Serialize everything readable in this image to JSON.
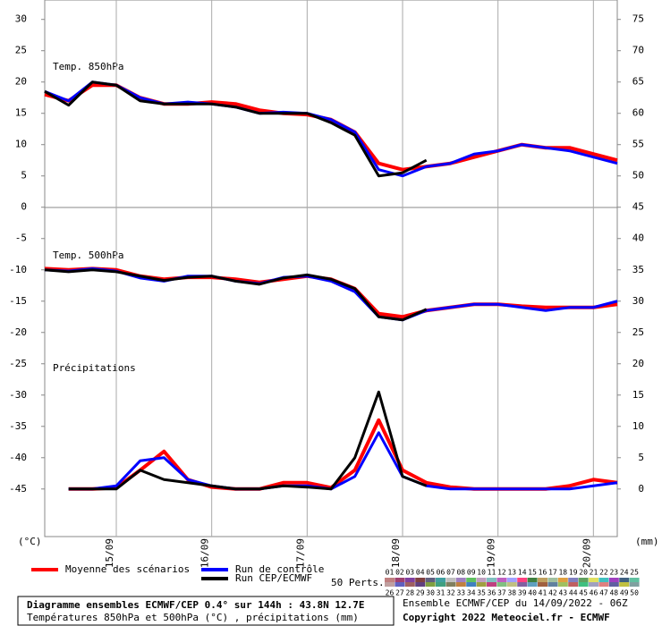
{
  "chart_data": {
    "type": "line",
    "panels": [
      "Temp. 850hPa",
      "Temp. 500hPa",
      "Précipitations"
    ],
    "y_unit": "(°C)",
    "y2_unit": "(mm)",
    "x": [
      0,
      6,
      12,
      18,
      24,
      30,
      36,
      42,
      48,
      54,
      60,
      66,
      72,
      78,
      84,
      90,
      96,
      102,
      108,
      114,
      120,
      126,
      132,
      138,
      144
    ],
    "xlim": [
      0,
      144
    ],
    "xticks": [
      {
        "value": 18,
        "label": "15/09"
      },
      {
        "value": 42,
        "label": "16/09"
      },
      {
        "value": 66,
        "label": "17/09"
      },
      {
        "value": 90,
        "label": "18/09"
      },
      {
        "value": 114,
        "label": "19/09"
      },
      {
        "value": 138,
        "label": "20/09"
      }
    ],
    "ylim": [
      -52.6,
      33.1
    ],
    "yticks": [
      30,
      25,
      20,
      15,
      10,
      5,
      0,
      -5,
      -10,
      -15,
      -20,
      -25,
      -30,
      -35,
      -40,
      -45
    ],
    "y2lim": [
      -7.6,
      78.1
    ],
    "y2ticks": [
      75,
      70,
      65,
      60,
      55,
      50,
      45,
      40,
      35,
      30,
      25,
      20,
      15,
      10,
      5,
      0
    ],
    "grid": true,
    "series": [
      {
        "name": "Moyenne des scénarios",
        "color": "#ff0000",
        "width": 4,
        "t850": [
          18,
          17,
          19.5,
          19.5,
          17.5,
          16.5,
          16.5,
          16.8,
          16.5,
          15.5,
          15,
          14.8,
          14,
          12,
          7,
          6,
          6.5,
          7,
          8,
          9,
          10,
          9.5,
          9.5,
          8.5,
          7.5
        ],
        "t500": [
          -9.8,
          -10,
          -9.8,
          -10,
          -11,
          -11.5,
          -11.2,
          -11.2,
          -11.5,
          -12,
          -11.5,
          -11,
          -11.5,
          -13,
          -17,
          -17.5,
          -16.5,
          -16,
          -15.5,
          -15.5,
          -15.8,
          -16,
          -16,
          -16,
          -15.5
        ],
        "precip": [
          null,
          0,
          0,
          0.2,
          3,
          6,
          1.5,
          0.3,
          0,
          0,
          1,
          1,
          0.2,
          3,
          11,
          3,
          1,
          0.3,
          0,
          0,
          0,
          0,
          0.5,
          1.5,
          1
        ]
      },
      {
        "name": "Run de contrôle",
        "color": "#0000ff",
        "width": 3,
        "t850": [
          18.5,
          17,
          20,
          19.5,
          17.5,
          16.5,
          16.8,
          16.5,
          16,
          15,
          15.2,
          15,
          14,
          12,
          6,
          5,
          6.5,
          7,
          8.5,
          9,
          10,
          9.5,
          9,
          8,
          7
        ],
        "t500": [
          -10,
          -10.2,
          -9.8,
          -10.2,
          -11.3,
          -11.8,
          -11,
          -11,
          -11.8,
          -12.2,
          -11.2,
          -11,
          -11.8,
          -13.5,
          -17.5,
          -18,
          -16.5,
          -16,
          -15.5,
          -15.5,
          -16,
          -16.5,
          -16,
          -16,
          -15
        ],
        "precip": [
          null,
          0,
          0,
          0.5,
          4.5,
          5,
          1.5,
          0.5,
          0,
          0,
          0.5,
          0.5,
          0,
          2,
          9,
          2,
          0.5,
          0,
          0,
          0,
          0,
          0,
          0,
          0.5,
          1
        ]
      },
      {
        "name": "Run CEP/ECMWF",
        "color": "#000000",
        "width": 3,
        "t850": [
          18.5,
          16.3,
          20,
          19.5,
          17,
          16.5,
          16.5,
          16.5,
          16,
          15,
          15,
          15,
          13.5,
          11.5,
          5,
          5.5,
          7.5,
          null,
          null,
          null,
          null,
          null,
          null,
          null,
          null
        ],
        "t500": [
          -10,
          -10.3,
          -10,
          -10.3,
          -11,
          -11.7,
          -11.2,
          -11,
          -11.8,
          -12.3,
          -11.3,
          -10.8,
          -11.5,
          -13,
          -17.5,
          -18,
          -16.3,
          null,
          null,
          null,
          null,
          null,
          null,
          null,
          null
        ],
        "precip": [
          null,
          0,
          0,
          0,
          3,
          1.5,
          1,
          0.5,
          0,
          0,
          0.5,
          0.3,
          0,
          5,
          15.5,
          2,
          0.5,
          null,
          null,
          null,
          null,
          null,
          null,
          null,
          null
        ]
      }
    ],
    "perturbations": {
      "label": "50 Perts.",
      "members": [
        {
          "name": "01",
          "color": "#c08080"
        },
        {
          "name": "02",
          "color": "#a04070"
        },
        {
          "name": "03",
          "color": "#8040a0"
        },
        {
          "name": "04",
          "color": "#804040"
        },
        {
          "name": "05",
          "color": "#606080"
        },
        {
          "name": "06",
          "color": "#40a0a0"
        },
        {
          "name": "07",
          "color": "#c0c0c0"
        },
        {
          "name": "08",
          "color": "#a080c0"
        },
        {
          "name": "09",
          "color": "#60c060"
        },
        {
          "name": "10",
          "color": "#c0a0c0"
        },
        {
          "name": "11",
          "color": "#80c0c0"
        },
        {
          "name": "12",
          "color": "#c060c0"
        },
        {
          "name": "13",
          "color": "#a0a0ff"
        },
        {
          "name": "14",
          "color": "#ff4080"
        },
        {
          "name": "15",
          "color": "#408040"
        },
        {
          "name": "16",
          "color": "#c0a060"
        },
        {
          "name": "17",
          "color": "#a0c0a0"
        },
        {
          "name": "18",
          "color": "#e0a040"
        },
        {
          "name": "19",
          "color": "#8080c0"
        },
        {
          "name": "20",
          "color": "#60a060"
        },
        {
          "name": "21",
          "color": "#e0e060"
        },
        {
          "name": "22",
          "color": "#40c0c0"
        },
        {
          "name": "23",
          "color": "#a040c0"
        },
        {
          "name": "24",
          "color": "#406080"
        },
        {
          "name": "25",
          "color": "#60c0a0"
        },
        {
          "name": "26",
          "color": "#c0a0a0"
        },
        {
          "name": "27",
          "color": "#6060c0"
        },
        {
          "name": "28",
          "color": "#a06060"
        },
        {
          "name": "29",
          "color": "#604080"
        },
        {
          "name": "30",
          "color": "#80a040"
        },
        {
          "name": "31",
          "color": "#40a080"
        },
        {
          "name": "32",
          "color": "#808060"
        },
        {
          "name": "33",
          "color": "#c08040"
        },
        {
          "name": "34",
          "color": "#4080c0"
        },
        {
          "name": "35",
          "color": "#a0a040"
        },
        {
          "name": "36",
          "color": "#c04080"
        },
        {
          "name": "37",
          "color": "#80c080"
        },
        {
          "name": "38",
          "color": "#c0c080"
        },
        {
          "name": "39",
          "color": "#8060a0"
        },
        {
          "name": "40",
          "color": "#60a0c0"
        },
        {
          "name": "41",
          "color": "#a06040"
        },
        {
          "name": "42",
          "color": "#6080a0"
        },
        {
          "name": "43",
          "color": "#a0c060"
        },
        {
          "name": "44",
          "color": "#c06060"
        },
        {
          "name": "45",
          "color": "#40c080"
        },
        {
          "name": "46",
          "color": "#a0a0c0"
        },
        {
          "name": "47",
          "color": "#e08080"
        },
        {
          "name": "48",
          "color": "#6060a0"
        },
        {
          "name": "49",
          "color": "#c0c040"
        },
        {
          "name": "50",
          "color": "#80a0a0"
        }
      ]
    },
    "footer": {
      "title": "Diagramme ensembles ECMWF/CEP 0.4° sur 144h : 43.8N 12.7E",
      "subtitle": "Températures 850hPa et 500hPa (°C) , précipitations (mm)",
      "run": "Ensemble ECMWF/CEP du 14/09/2022 - 06Z",
      "copyright": "Copyright 2022 Meteociel.fr - ECMWF"
    }
  }
}
